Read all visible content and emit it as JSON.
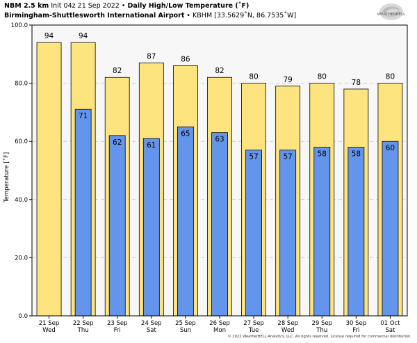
{
  "header": {
    "model": "NBM 2.5 km",
    "init": "Init 04z 21 Sep 2022",
    "sep": "•",
    "product": "Daily High/Low Temperature (˚F)",
    "station": "Birmingham-Shuttlesworth International Airport",
    "station_id": "KBHM [33.5629˚N, 86.7535˚W]"
  },
  "logo": {
    "text": "WEATHERBELL",
    "icon": "weatherbell-swirl-logo"
  },
  "footer": "© 2022 WeatherBELL Analytics, LLC. All rights reserved. License required for commercial distribution.",
  "colors": {
    "high": "#fde47f",
    "low": "#6495ed",
    "grid": "#cccccc",
    "plot_bg": "#f7f7f7"
  },
  "chart_data": {
    "type": "bar",
    "title": "Daily High/Low Temperature (˚F)",
    "ylabel": "Temperature [˚F]",
    "ylim": [
      0,
      100
    ],
    "yticks": [
      "0.0",
      "20.0",
      "40.0",
      "60.0",
      "80.0",
      "100.0"
    ],
    "grid": true,
    "categories": [
      [
        "21 Sep",
        "Wed"
      ],
      [
        "22 Sep",
        "Thu"
      ],
      [
        "23 Sep",
        "Fri"
      ],
      [
        "24 Sep",
        "Sat"
      ],
      [
        "25 Sep",
        "Sun"
      ],
      [
        "26 Sep",
        "Mon"
      ],
      [
        "27 Sep",
        "Tue"
      ],
      [
        "28 Sep",
        "Wed"
      ],
      [
        "29 Sep",
        "Thu"
      ],
      [
        "30 Sep",
        "Fri"
      ],
      [
        "01 Oct",
        "Sat"
      ]
    ],
    "series": [
      {
        "name": "High",
        "values": [
          94,
          94,
          82,
          87,
          86,
          82,
          80,
          79,
          80,
          78,
          80
        ]
      },
      {
        "name": "Low",
        "values": [
          null,
          71,
          62,
          61,
          65,
          63,
          57,
          57,
          58,
          58,
          60
        ]
      }
    ]
  }
}
